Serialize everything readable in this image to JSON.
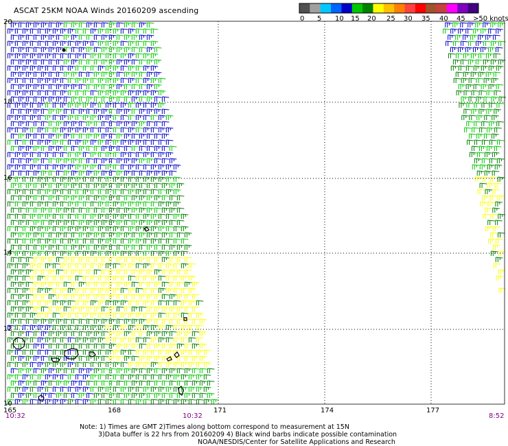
{
  "title": "ASCAT 25KM NOAA Winds 20160209 ascending",
  "colorbar": {
    "labels": [
      "0",
      "5",
      "10",
      "15",
      "20",
      "25",
      "30",
      "35",
      "40",
      "45",
      ">50 knots"
    ],
    "colors": [
      "#505050",
      "#a0a0a0",
      "#00c8ff",
      "#0064ff",
      "#0000c8",
      "#00c800",
      "#008000",
      "#ffff00",
      "#ffc000",
      "#ff8000",
      "#ff4040",
      "#ff0000",
      "#a0522d",
      "#c84040",
      "#ff00ff",
      "#8000c0",
      "#400080"
    ]
  },
  "map": {
    "lon_ticks": [
      "165",
      "168",
      "171",
      "174",
      "177"
    ],
    "lat_ticks": [
      "20",
      "18",
      "16",
      "14",
      "12",
      "10"
    ],
    "time_labels": [
      "10:32",
      "10:32",
      "8:52"
    ]
  },
  "colors": {
    "low": "#0000c8",
    "mid": "#00c800",
    "midhigh": "#008000",
    "high": "#ffff00",
    "contamination": "#000000",
    "time_text": "#800080"
  },
  "notes": [
    "Note: 1) Times are GMT 2)Times along bottom correspond to measurement at 15N",
    "3)Data buffer is 22 hrs from 20160209 4) Black wind barbs indicate possible contamination",
    "NOAA/NESDIS/Center for Satellite Applications and Research"
  ]
}
